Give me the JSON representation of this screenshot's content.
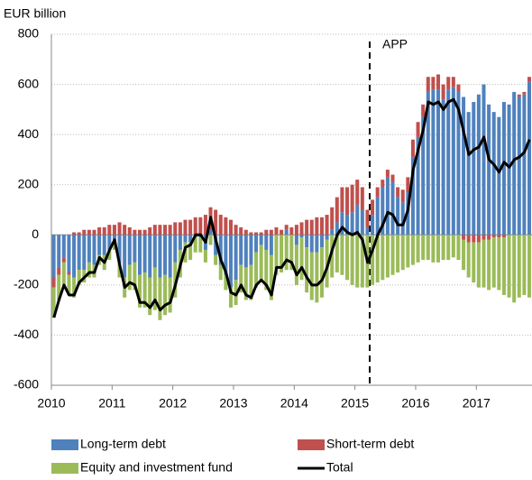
{
  "chart_data": {
    "type": "bar",
    "stacked": true,
    "y_label": "EUR billion",
    "annotation": "APP",
    "categories": [
      "2010",
      null,
      null,
      null,
      null,
      null,
      null,
      null,
      null,
      null,
      null,
      null,
      "2011",
      null,
      null,
      null,
      null,
      null,
      null,
      null,
      null,
      null,
      null,
      null,
      "2012",
      null,
      null,
      null,
      null,
      null,
      null,
      null,
      null,
      null,
      null,
      null,
      "2013",
      null,
      null,
      null,
      null,
      null,
      null,
      null,
      null,
      null,
      null,
      null,
      "2014",
      null,
      null,
      null,
      null,
      null,
      null,
      null,
      null,
      null,
      null,
      null,
      "2015",
      null,
      null,
      null,
      null,
      null,
      null,
      null,
      null,
      null,
      null,
      null,
      "2016",
      null,
      null,
      null,
      null,
      null,
      null,
      null,
      null,
      null,
      null,
      null,
      "2017",
      null,
      null,
      null,
      null,
      null,
      null,
      null,
      null,
      null,
      null
    ],
    "series": [
      {
        "name": "Long-term debt",
        "color": "#4f81bd",
        "values": [
          -170,
          -130,
          -90,
          -150,
          -170,
          -140,
          -140,
          -110,
          -120,
          -80,
          -80,
          -60,
          -20,
          -110,
          -170,
          -120,
          -110,
          -160,
          -150,
          -170,
          -130,
          -170,
          -160,
          -170,
          -110,
          -60,
          -30,
          -30,
          -10,
          -10,
          -60,
          20,
          -80,
          -120,
          -160,
          -210,
          -180,
          -120,
          -130,
          -120,
          -70,
          -40,
          -60,
          -80,
          0,
          0,
          20,
          0,
          -40,
          -10,
          -50,
          -70,
          -70,
          -50,
          -20,
          20,
          50,
          90,
          80,
          90,
          120,
          100,
          30,
          80,
          150,
          190,
          230,
          210,
          150,
          130,
          170,
          310,
          390,
          470,
          570,
          580,
          580,
          540,
          580,
          590,
          570,
          550,
          490,
          530,
          560,
          600,
          520,
          490,
          470,
          530,
          520,
          570,
          550,
          560,
          610
        ]
      },
      {
        "name": "Short-term debt",
        "color": "#c0504d",
        "values": [
          -40,
          -30,
          -20,
          -10,
          10,
          10,
          20,
          20,
          20,
          30,
          30,
          40,
          40,
          50,
          40,
          30,
          20,
          20,
          20,
          30,
          40,
          40,
          40,
          40,
          50,
          50,
          60,
          60,
          70,
          70,
          80,
          90,
          100,
          80,
          70,
          60,
          40,
          30,
          20,
          10,
          10,
          10,
          20,
          20,
          30,
          20,
          20,
          30,
          40,
          50,
          60,
          60,
          70,
          70,
          80,
          90,
          100,
          100,
          110,
          110,
          100,
          90,
          70,
          60,
          40,
          30,
          30,
          30,
          40,
          50,
          60,
          70,
          60,
          50,
          60,
          50,
          60,
          60,
          50,
          40,
          30,
          -20,
          -30,
          -30,
          -30,
          -20,
          -20,
          -10,
          -10,
          -10,
          0,
          0,
          10,
          10,
          20
        ]
      },
      {
        "name": "Equity and investment fund",
        "color": "#9bbb59",
        "values": [
          -120,
          -100,
          -90,
          -80,
          -80,
          -60,
          -50,
          -60,
          -50,
          -40,
          -60,
          -40,
          -40,
          -60,
          -80,
          -100,
          -110,
          -130,
          -140,
          -150,
          -170,
          -170,
          -160,
          -140,
          -140,
          -110,
          -80,
          -70,
          -60,
          -60,
          -50,
          -40,
          -40,
          -60,
          -60,
          -80,
          -100,
          -110,
          -130,
          -140,
          -140,
          -150,
          -160,
          -180,
          -160,
          -150,
          -140,
          -140,
          -160,
          -170,
          -180,
          -190,
          -200,
          -200,
          -190,
          -170,
          -150,
          -160,
          -180,
          -200,
          -210,
          -210,
          -210,
          -200,
          -190,
          -180,
          -170,
          -160,
          -150,
          -140,
          -130,
          -120,
          -110,
          -100,
          -100,
          -110,
          -110,
          -100,
          -100,
          -90,
          -100,
          -120,
          -140,
          -160,
          -180,
          -190,
          -200,
          -200,
          -210,
          -230,
          -250,
          -270,
          -250,
          -240,
          -250
        ]
      },
      {
        "name": "Total",
        "color": "#000000",
        "line": true,
        "values": [
          -330,
          -260,
          -200,
          -240,
          -240,
          -190,
          -170,
          -150,
          -150,
          -90,
          -110,
          -60,
          -20,
          -120,
          -210,
          -190,
          -200,
          -270,
          -270,
          -290,
          -260,
          -300,
          -280,
          -270,
          -200,
          -120,
          -50,
          -40,
          0,
          0,
          -30,
          70,
          -20,
          -100,
          -150,
          -230,
          -240,
          -200,
          -240,
          -250,
          -200,
          -180,
          -200,
          -240,
          -130,
          -130,
          -100,
          -110,
          -160,
          -130,
          -170,
          -200,
          -200,
          -180,
          -130,
          -60,
          0,
          30,
          10,
          0,
          10,
          -20,
          -110,
          -60,
          0,
          40,
          90,
          80,
          40,
          40,
          100,
          260,
          340,
          420,
          530,
          520,
          530,
          500,
          530,
          540,
          500,
          410,
          320,
          340,
          350,
          390,
          300,
          280,
          250,
          290,
          270,
          300,
          310,
          330,
          380
        ]
      }
    ],
    "ylim": [
      -600,
      800
    ],
    "yticks": [
      -600,
      -400,
      -200,
      0,
      200,
      400,
      600,
      800
    ],
    "grid": true
  }
}
